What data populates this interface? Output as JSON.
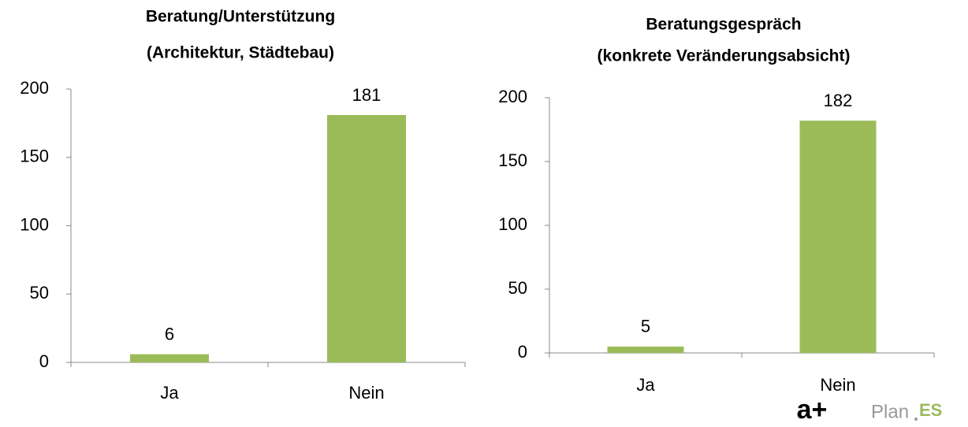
{
  "chart_data": [
    {
      "type": "bar",
      "title": [
        "Beratung/Unterstützung",
        "(Architektur, Städtebau)"
      ],
      "categories": [
        "Ja",
        "Nein"
      ],
      "values": [
        6,
        181
      ],
      "color": "#9bbb59",
      "ylim": [
        0,
        200
      ],
      "yticks": [
        0,
        50,
        100,
        150,
        200
      ]
    },
    {
      "type": "bar",
      "title": [
        "Beratungsgespräch",
        "(konkrete Veränderungsabsicht)"
      ],
      "categories": [
        "Ja",
        "Nein"
      ],
      "values": [
        5,
        182
      ],
      "color": "#9bbb59",
      "ylim": [
        0,
        200
      ],
      "yticks": [
        0,
        50,
        100,
        150,
        200
      ]
    }
  ],
  "logo": {
    "a_plus": "a+",
    "plan": "Plan",
    "es": "ES"
  }
}
